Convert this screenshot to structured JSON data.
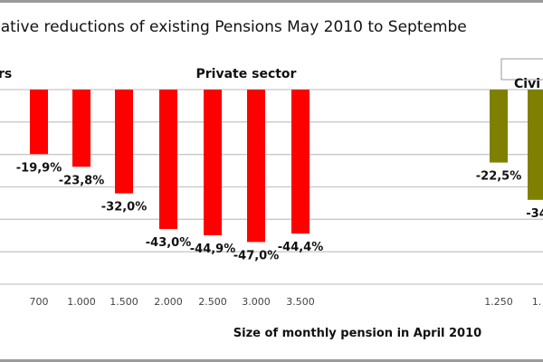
{
  "chart_data": {
    "type": "bar",
    "title": "lative reductions of existing Pensions May 2010 to Septembe",
    "xlabel": "Size of monthly pension in April 2010",
    "ylabel": "",
    "ylim": [
      -60,
      0
    ],
    "grid": true,
    "group_labels": [
      "rs",
      "Private sector",
      "Civi"
    ],
    "groups": [
      {
        "label": "Private sector",
        "color": "#ff0000",
        "categories": [
          "700",
          "1.000",
          "1.500",
          "2.000",
          "2.500",
          "3.000",
          "3.500"
        ],
        "values": [
          -19.9,
          -23.8,
          -32.0,
          -43.0,
          -44.9,
          -47.0,
          -44.4
        ],
        "data_labels": [
          "-19,9%",
          "-23,8%",
          "-32,0%",
          "-43,0%",
          "-44,9%",
          "-47,0%",
          "-44,4%"
        ]
      },
      {
        "label": "Civi",
        "color": "#808000",
        "categories": [
          "1.250",
          "1."
        ],
        "values": [
          -22.5,
          -34
        ],
        "data_labels": [
          "-22,5%",
          "-34"
        ]
      }
    ]
  }
}
